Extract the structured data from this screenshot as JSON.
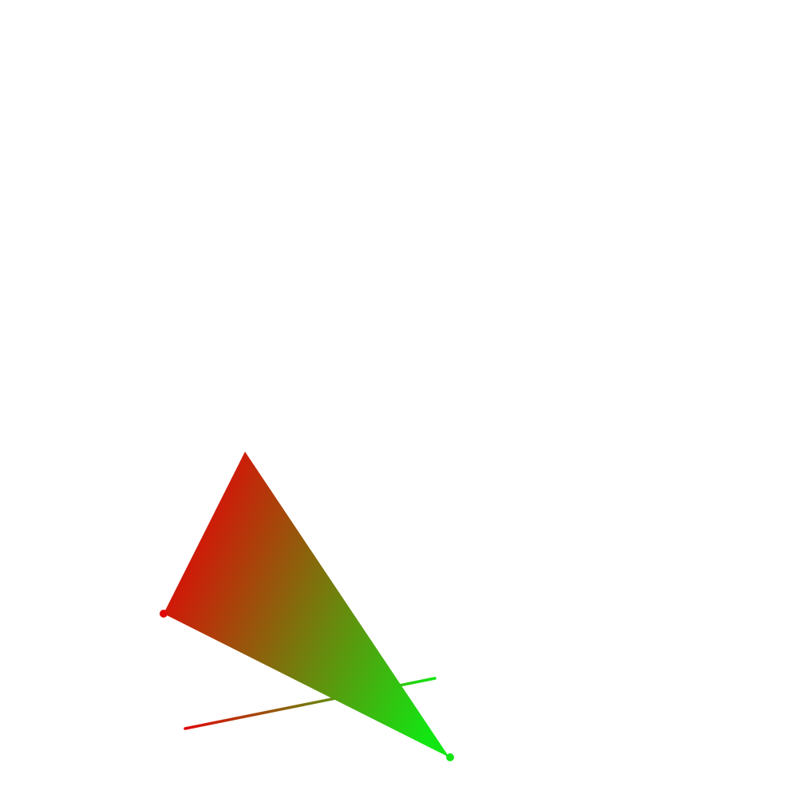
{
  "scene": {
    "background": "#ffffff",
    "gradient_start_color": "#e00808",
    "gradient_end_color": "#12e612",
    "shapes": [
      "gradient-triangle",
      "gradient-line",
      "red-dot",
      "green-dot"
    ]
  }
}
